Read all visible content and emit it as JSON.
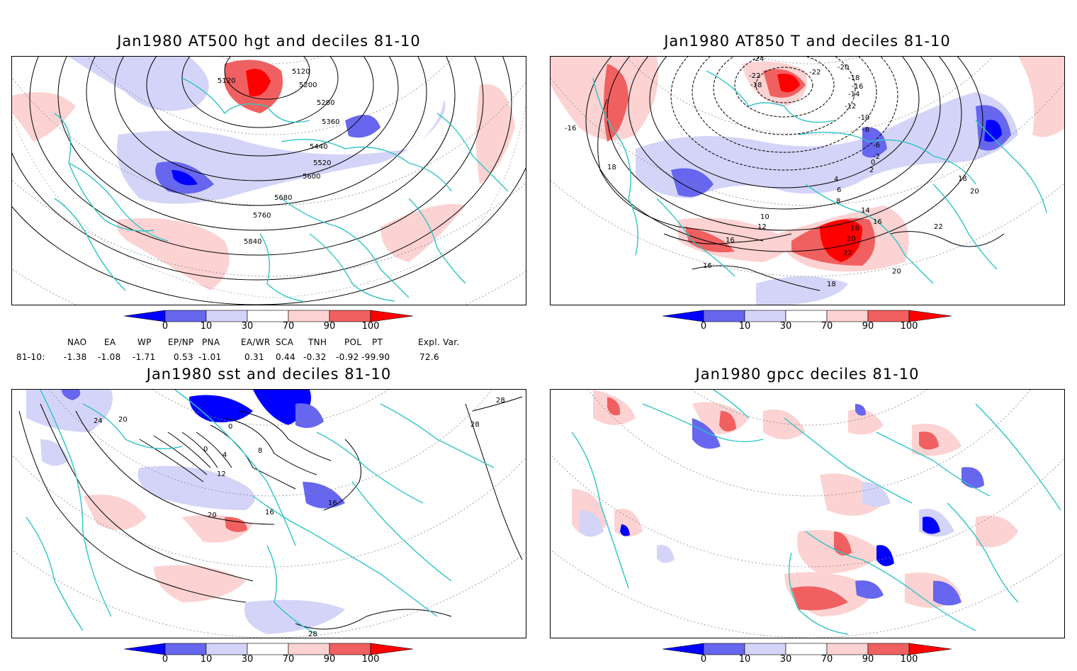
{
  "panels": {
    "top_left": {
      "title": "Jan1980 AT500 hgt and deciles 81-10",
      "contour_labels": [
        "5120",
        "5120",
        "5200",
        "5280",
        "5360",
        "5440",
        "5520",
        "5600",
        "5680",
        "5760",
        "5840"
      ]
    },
    "top_right": {
      "title": "Jan1980 AT850 T and deciles 81-10",
      "contour_labels": [
        "-24",
        "-22",
        "-22",
        "-20",
        "-18",
        "-18",
        "-16",
        "-14",
        "-12",
        "-10",
        "-8",
        "-6",
        "-2",
        "0",
        "2",
        "4",
        "6",
        "8",
        "10",
        "12",
        "14",
        "16",
        "16",
        "16",
        "16",
        "18",
        "18",
        "20",
        "20",
        "20",
        "22",
        "22",
        "-16",
        "18"
      ]
    },
    "bottom_left": {
      "title": "Jan1980 sst and deciles 81-10",
      "contour_labels": [
        "24",
        "20",
        "0",
        "0",
        "4",
        "8",
        "12",
        "16",
        "16",
        "20",
        "28",
        "28",
        "28"
      ]
    },
    "bottom_right": {
      "title": "Jan1980 gpcc deciles 81-10"
    }
  },
  "colorbar": {
    "ticks": [
      "0",
      "10",
      "30",
      "70",
      "90",
      "100"
    ],
    "colors": [
      "#0000ff",
      "#6666ee",
      "#d4d4f8",
      "#ffffff",
      "#fcd2d2",
      "#f06060",
      "#ff0000"
    ]
  },
  "indices": {
    "headers": [
      "NAO",
      "EA",
      "WP",
      "EP/NP",
      "PNA",
      "EA/WR",
      "SCA",
      "TNH",
      "POL",
      "PT",
      "Expl. Var."
    ],
    "row_label": "81-10:",
    "values": [
      "-1.38",
      "-1.08",
      "-1.71",
      "0.53",
      "-1.01",
      "0.31",
      "0.44",
      "-0.32",
      "-0.92",
      "-99.90",
      "72.6"
    ]
  },
  "colors": {
    "coast": "#2ec4c4",
    "contour": "#000000",
    "grid": "#888888"
  }
}
